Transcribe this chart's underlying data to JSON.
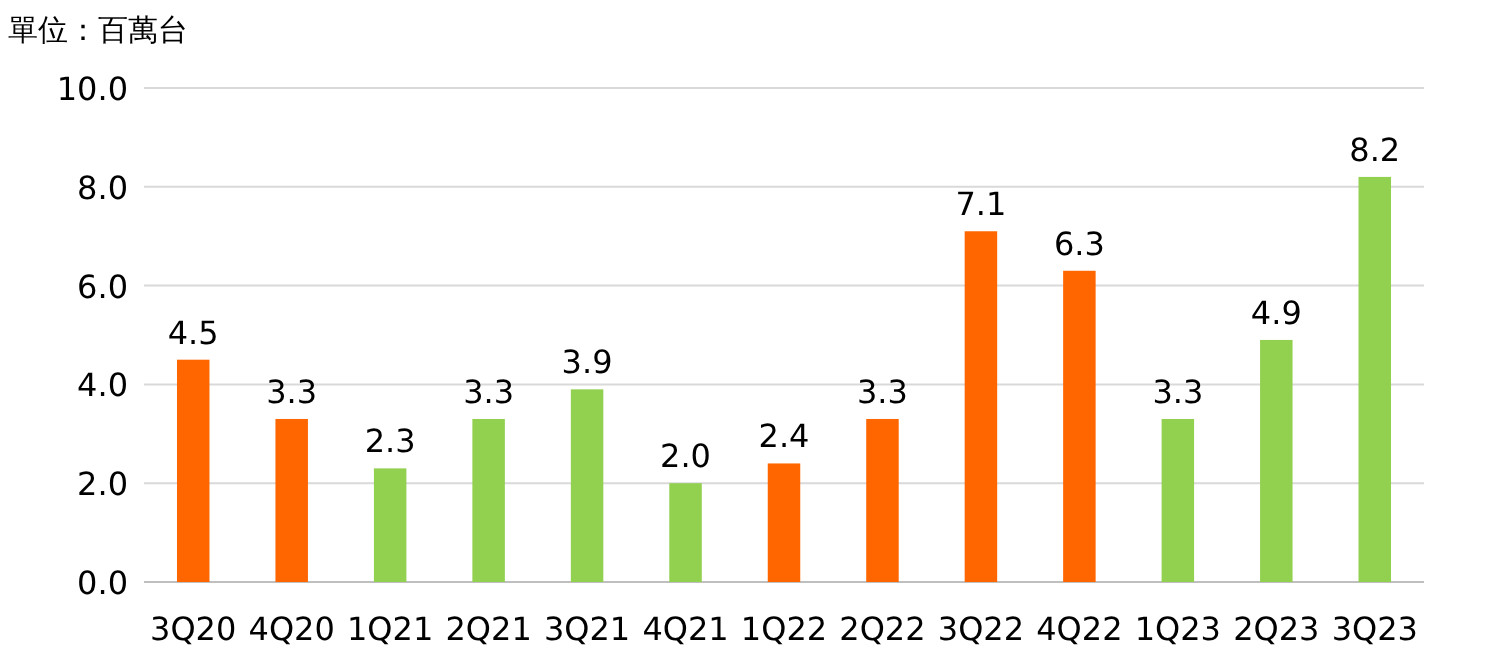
{
  "chart_data": {
    "type": "bar",
    "ylabel": "單位：百萬台",
    "categories": [
      "3Q20",
      "4Q20",
      "1Q21",
      "2Q21",
      "3Q21",
      "4Q21",
      "1Q22",
      "2Q22",
      "3Q22",
      "4Q22",
      "1Q23",
      "2Q23",
      "3Q23"
    ],
    "values": [
      4.5,
      3.3,
      2.3,
      3.3,
      3.9,
      2.0,
      2.4,
      3.3,
      7.1,
      6.3,
      3.3,
      4.9,
      8.2
    ],
    "colors": [
      "#ff6600",
      "#ff6600",
      "#92d050",
      "#92d050",
      "#92d050",
      "#92d050",
      "#ff6600",
      "#ff6600",
      "#ff6600",
      "#ff6600",
      "#92d050",
      "#92d050",
      "#92d050"
    ],
    "ylim": [
      0,
      10
    ],
    "yticks": [
      {
        "value": 0,
        "label": "0.0"
      },
      {
        "value": 2,
        "label": "2.0"
      },
      {
        "value": 4,
        "label": "4.0"
      },
      {
        "value": 6,
        "label": "6.0"
      },
      {
        "value": 8,
        "label": "8.0"
      },
      {
        "value": 10,
        "label": "10.0"
      }
    ],
    "value_labels": [
      "4.5",
      "3.3",
      "2.3",
      "3.3",
      "3.9",
      "2.0",
      "2.4",
      "3.3",
      "7.1",
      "6.3",
      "3.3",
      "4.9",
      "8.2"
    ],
    "grid": "y"
  }
}
